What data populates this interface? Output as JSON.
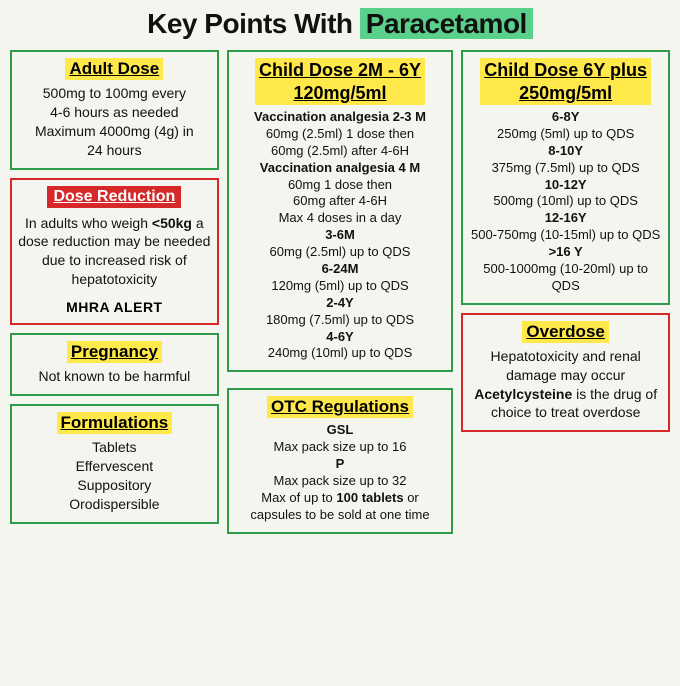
{
  "title_prefix": "Key Points With ",
  "title_highlight": "Paracetamol",
  "colors": {
    "green_border": "#2e9a4a",
    "red_border": "#d62828",
    "yellow_highlight": "#ffe94a",
    "green_highlight": "#5ad18a",
    "background": "#f5f5f0",
    "text": "#111111"
  },
  "left": {
    "adult_dose": {
      "title": "Adult Dose",
      "line1": "500mg to 100mg every",
      "line2": "4-6 hours as needed",
      "line3": "Maximum 4000mg (4g) in",
      "line4": "24 hours"
    },
    "dose_reduction": {
      "title": "Dose Reduction",
      "text_pre": "In adults who weigh ",
      "text_bold": "<50kg",
      "text_post": " a dose reduction may be needed due to increased risk of hepatotoxicity",
      "alert": "MHRA ALERT"
    },
    "pregnancy": {
      "title": "Pregnancy",
      "text": "Not known to be harmful"
    },
    "formulations": {
      "title": "Formulations",
      "items": [
        "Tablets",
        "Effervescent",
        "Suppository",
        "Orodispersible"
      ]
    }
  },
  "mid": {
    "child_2m_6y": {
      "title_l1": "Child Dose 2M - 6Y",
      "title_l2": "120mg/5ml",
      "h1": "Vaccination analgesia 2-3 M",
      "l1a": "60mg (2.5ml) 1 dose then",
      "l1b": "60mg (2.5ml) after 4-6H",
      "h2": "Vaccination analgesia 4 M",
      "l2a": "60mg 1 dose then",
      "l2b": "60mg after 4-6H",
      "l2c": "Max 4 doses in a day",
      "h3": "3-6M",
      "l3": "60mg (2.5ml) up to QDS",
      "h4": "6-24M",
      "l4": "120mg (5ml) up to QDS",
      "h5": "2-4Y",
      "l5": "180mg (7.5ml) up to QDS",
      "h6": "4-6Y",
      "l6": "240mg (10ml) up to QDS"
    },
    "otc": {
      "title": "OTC Regulations",
      "h1": "GSL",
      "l1": "Max pack size up to 16",
      "h2": "P",
      "l2": "Max pack size up to 32",
      "l3_pre": "Max of up to ",
      "l3_bold": "100 tablets",
      "l3_post": " or capsules to be sold at one time"
    }
  },
  "right": {
    "child_6y_plus": {
      "title_l1": "Child Dose 6Y plus",
      "title_l2": "250mg/5ml",
      "h1": "6-8Y",
      "l1": "250mg (5ml) up to QDS",
      "h2": "8-10Y",
      "l2": "375mg (7.5ml) up to QDS",
      "h3": "10-12Y",
      "l3": "500mg (10ml) up to QDS",
      "h4": "12-16Y",
      "l4": "500-750mg (10-15ml) up to QDS",
      "h5": ">16 Y",
      "l5": "500-1000mg (10-20ml) up to QDS"
    },
    "overdose": {
      "title": "Overdose",
      "l1": "Hepatotoxicity and renal damage may occur",
      "l2_bold": "Acetylcysteine",
      "l2_post": " is the drug of choice to treat overdose"
    }
  }
}
